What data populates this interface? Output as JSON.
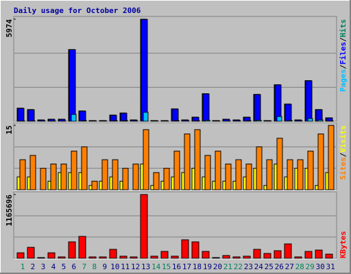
{
  "title": "Daily usage for October 2006",
  "legend_separator": "/",
  "chart_data": [
    {
      "type": "bar",
      "ylim": [
        0,
        5974
      ],
      "yticks": [
        5974
      ],
      "legend_position": "top",
      "series": [
        {
          "name": "Hits",
          "color": "#00805c",
          "values": [
            767,
            686,
            80,
            120,
            120,
            4198,
            605,
            40,
            40,
            363,
            484,
            80,
            5974,
            40,
            40,
            727,
            80,
            242,
            1615,
            40,
            120,
            80,
            242,
            1574,
            40,
            2139,
            1009,
            80,
            2381,
            686,
            202
          ]
        },
        {
          "name": "Files",
          "color": "#0000ff",
          "values": [
            750,
            670,
            70,
            110,
            110,
            4190,
            590,
            35,
            35,
            350,
            470,
            70,
            5960,
            35,
            35,
            715,
            70,
            230,
            1600,
            35,
            110,
            70,
            230,
            1560,
            35,
            2125,
            995,
            70,
            2365,
            670,
            190
          ]
        },
        {
          "name": "Pages",
          "color": "#00c0ff",
          "values": [
            20,
            20,
            10,
            15,
            15,
            400,
            40,
            5,
            5,
            30,
            40,
            10,
            525,
            5,
            5,
            40,
            10,
            30,
            60,
            5,
            15,
            10,
            30,
            60,
            5,
            280,
            50,
            10,
            160,
            80,
            20
          ]
        }
      ]
    },
    {
      "type": "bar",
      "ylim": [
        0,
        15
      ],
      "yticks": [
        15
      ],
      "legend_position": "top",
      "series": [
        {
          "name": "Visits",
          "color": "#ffff00",
          "values": [
            3,
            3,
            0,
            2,
            4,
            4,
            4,
            1,
            2,
            3,
            2,
            0,
            6,
            1,
            2,
            3,
            4,
            5,
            3,
            2,
            2,
            2,
            3,
            5,
            1,
            6,
            3,
            5,
            5,
            1,
            4
          ]
        },
        {
          "name": "Sites",
          "color": "#ff8000",
          "values": [
            7,
            8,
            5,
            6,
            6,
            9,
            10,
            2,
            7,
            7,
            5,
            6,
            14,
            4,
            5,
            9,
            13,
            14,
            8,
            9,
            6,
            7,
            6,
            10,
            7,
            12,
            7,
            7,
            9,
            13,
            15
          ]
        }
      ]
    },
    {
      "type": "bar",
      "ylim": [
        0,
        1165696
      ],
      "yticks": [
        1165696
      ],
      "legend_position": "bottom",
      "categories": [
        "1",
        "2",
        "3",
        "4",
        "5",
        "6",
        "7",
        "8",
        "9",
        "10",
        "11",
        "12",
        "13",
        "14",
        "15",
        "16",
        "17",
        "18",
        "19",
        "20",
        "21",
        "22",
        "23",
        "24",
        "25",
        "26",
        "27",
        "28",
        "29",
        "30",
        "31"
      ],
      "category_color": "#000080",
      "highlight_categories": [
        "1",
        "7",
        "8",
        "14",
        "15",
        "21",
        "22",
        "28",
        "29"
      ],
      "highlight_color": "#00805c",
      "series": [
        {
          "name": "KBytes",
          "color": "#ff0000",
          "values": [
            100000,
            200000,
            12000,
            100000,
            25000,
            300000,
            400000,
            25000,
            25000,
            163000,
            38000,
            25000,
            1165696,
            38000,
            125000,
            38000,
            338000,
            300000,
            125000,
            12000,
            50000,
            25000,
            38000,
            163000,
            88000,
            138000,
            263000,
            25000,
            125000,
            150000,
            75000
          ]
        }
      ]
    }
  ]
}
